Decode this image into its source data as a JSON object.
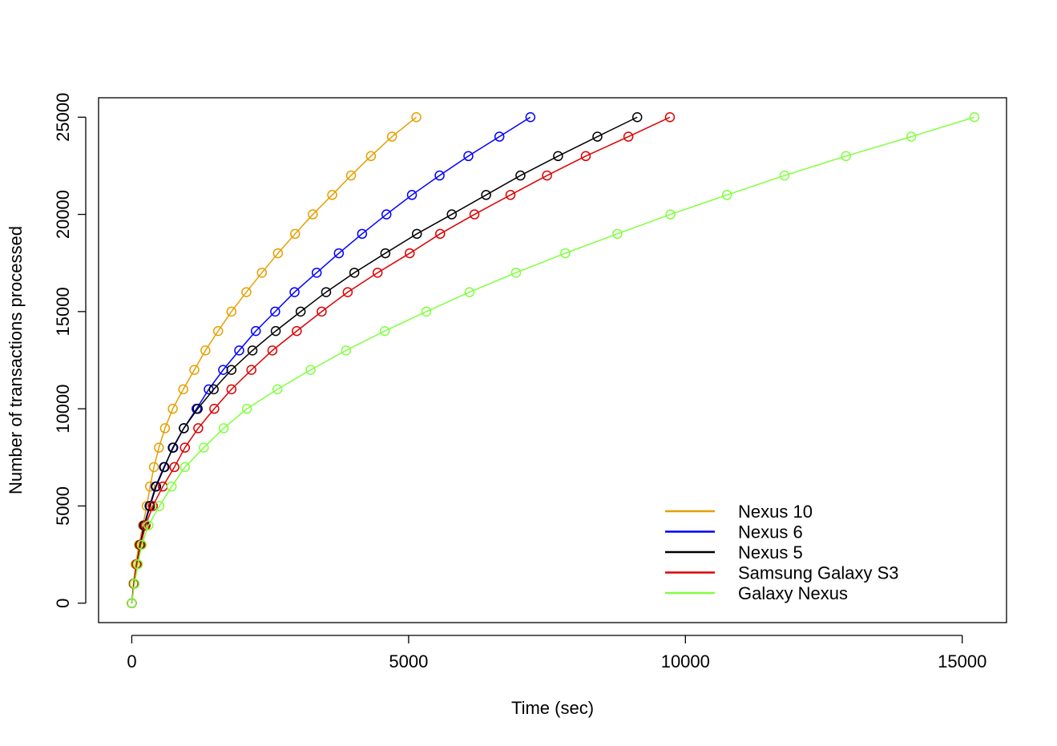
{
  "chart_data": {
    "type": "line",
    "title": "",
    "xlabel": "Time (sec)",
    "ylabel": "Number of transactions processed",
    "xlim": [
      -600,
      15800
    ],
    "ylim": [
      -1000,
      26000
    ],
    "xticks": [
      0,
      5000,
      10000,
      15000
    ],
    "yticks": [
      0,
      5000,
      10000,
      15000,
      20000,
      25000
    ],
    "xtick_labels": [
      "0",
      "5000",
      "10000",
      "15000"
    ],
    "ytick_labels": [
      "0",
      "5000",
      "10000",
      "15000",
      "20000",
      "25000"
    ],
    "grid": false,
    "legend_position": "bottom-right",
    "y": [
      0,
      1000,
      2000,
      3000,
      4000,
      5000,
      6000,
      7000,
      8000,
      9000,
      10000,
      11000,
      12000,
      13000,
      14000,
      15000,
      16000,
      17000,
      18000,
      19000,
      20000,
      21000,
      22000,
      23000,
      24000,
      25000
    ],
    "series": [
      {
        "name": "Nexus 10",
        "color": "#E69F00",
        "x": [
          0,
          30,
          70,
          130,
          200,
          270,
          330,
          400,
          490,
          600,
          740,
          930,
          1130,
          1330,
          1560,
          1800,
          2070,
          2350,
          2640,
          2950,
          3270,
          3620,
          3960,
          4320,
          4700,
          5140
        ]
      },
      {
        "name": "Nexus 6",
        "color": "#0000FF",
        "x": [
          0,
          40,
          90,
          150,
          220,
          320,
          430,
          580,
          750,
          940,
          1170,
          1390,
          1650,
          1940,
          2240,
          2590,
          2940,
          3340,
          3740,
          4160,
          4600,
          5060,
          5560,
          6080,
          6640,
          7200
        ]
      },
      {
        "name": "Nexus 5",
        "color": "#000000",
        "x": [
          0,
          40,
          90,
          150,
          230,
          330,
          440,
          590,
          740,
          940,
          1190,
          1480,
          1800,
          2180,
          2600,
          3050,
          3510,
          4020,
          4580,
          5150,
          5780,
          6400,
          7020,
          7700,
          8410,
          9130
        ]
      },
      {
        "name": "Samsung Galaxy S3",
        "color": "#DD0000",
        "x": [
          0,
          40,
          90,
          160,
          250,
          380,
          560,
          770,
          960,
          1200,
          1490,
          1800,
          2160,
          2540,
          2980,
          3430,
          3900,
          4440,
          5020,
          5570,
          6190,
          6840,
          7500,
          8200,
          8970,
          9720
        ]
      },
      {
        "name": "Galaxy Nexus",
        "color": "#80FF40",
        "x": [
          0,
          50,
          110,
          180,
          300,
          500,
          720,
          960,
          1300,
          1660,
          2080,
          2630,
          3230,
          3870,
          4570,
          5320,
          6100,
          6940,
          7830,
          8770,
          9730,
          10750,
          11790,
          12900,
          14080,
          15220
        ]
      }
    ]
  }
}
